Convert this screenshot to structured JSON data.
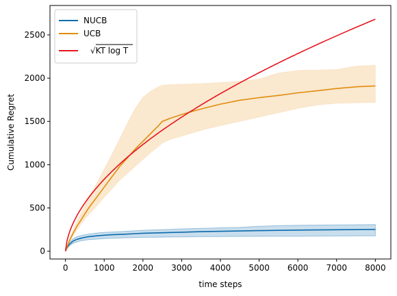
{
  "chart_data": {
    "type": "line",
    "xlabel": "time steps",
    "ylabel": "Cumulative Regret",
    "xlim": [
      -400,
      8400
    ],
    "ylim": [
      -90,
      2840
    ],
    "xticks": [
      0,
      1000,
      2000,
      3000,
      4000,
      5000,
      6000,
      7000,
      8000
    ],
    "yticks": [
      0,
      500,
      1000,
      1500,
      2000,
      2500
    ],
    "grid": false,
    "legend_position": "top-left",
    "series": [
      {
        "name": "NUCB",
        "color": "#0a6aac",
        "band_color": "#0a6aac",
        "x": [
          0,
          50,
          100,
          200,
          300,
          400,
          500,
          600,
          800,
          1000,
          1200,
          1500,
          1800,
          2000,
          2500,
          3000,
          3500,
          4000,
          4500,
          5000,
          5500,
          6000,
          6500,
          7000,
          7500,
          8000
        ],
        "y": [
          0,
          50,
          80,
          118,
          138,
          150,
          160,
          168,
          178,
          185,
          190,
          196,
          203,
          208,
          213,
          220,
          226,
          230,
          234,
          238,
          241,
          244,
          246,
          248,
          250,
          252
        ],
        "lower": [
          0,
          35,
          60,
          92,
          108,
          120,
          128,
          133,
          140,
          145,
          150,
          155,
          158,
          160,
          163,
          166,
          168,
          170,
          171,
          172,
          173,
          174,
          175,
          176,
          177,
          178
        ],
        "upper": [
          0,
          65,
          100,
          145,
          168,
          180,
          190,
          198,
          210,
          218,
          222,
          228,
          236,
          242,
          250,
          258,
          264,
          270,
          275,
          288,
          296,
          300,
          302,
          304,
          306,
          308
        ]
      },
      {
        "name": "UCB",
        "color": "#e08c0a",
        "band_color": "#f5d6a8",
        "x": [
          0,
          100,
          200,
          300,
          400,
          500,
          600,
          800,
          1000,
          1200,
          1400,
          1600,
          1800,
          2000,
          2200,
          2400,
          2500,
          2700,
          3000,
          3300,
          3600,
          4000,
          4500,
          5000,
          5500,
          6000,
          6500,
          7000,
          7500,
          8000
        ],
        "y": [
          0,
          120,
          210,
          290,
          360,
          430,
          500,
          620,
          740,
          860,
          980,
          1080,
          1180,
          1270,
          1360,
          1450,
          1500,
          1535,
          1580,
          1620,
          1655,
          1700,
          1745,
          1775,
          1800,
          1830,
          1855,
          1880,
          1900,
          1910
        ],
        "lower": [
          0,
          100,
          180,
          250,
          310,
          370,
          420,
          520,
          620,
          720,
          820,
          900,
          980,
          1060,
          1140,
          1210,
          1250,
          1290,
          1330,
          1370,
          1410,
          1450,
          1500,
          1550,
          1600,
          1650,
          1690,
          1710,
          1715,
          1720
        ],
        "upper": [
          0,
          140,
          250,
          350,
          440,
          530,
          620,
          780,
          950,
          1120,
          1300,
          1480,
          1650,
          1780,
          1850,
          1900,
          1920,
          1925,
          1930,
          1935,
          1940,
          1950,
          1965,
          1990,
          2060,
          2090,
          2095,
          2100,
          2140,
          2150
        ]
      },
      {
        "name": "√KT log T",
        "color": "#e8141c",
        "function": "sqrt_KTlogT",
        "K": 100,
        "x_max": 8000
      }
    ]
  }
}
